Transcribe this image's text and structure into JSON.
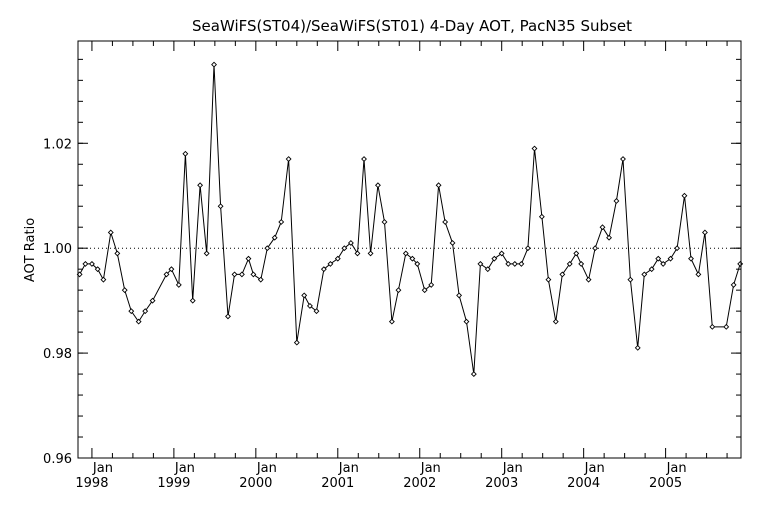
{
  "chart_data": {
    "type": "line",
    "title": "SeaWiFS(ST04)/SeaWiFS(ST01) 4-Day AOT, PacN35 Subset",
    "xlabel": "",
    "ylabel": "AOT Ratio",
    "x_unit": "decimal year",
    "xlim": [
      1997.83,
      2005.92
    ],
    "ylim": [
      0.96,
      1.0395
    ],
    "y_ticks": [
      0.96,
      0.98,
      1.0,
      1.02
    ],
    "y_tick_labels": [
      "0.96",
      "0.98",
      "1.00",
      "1.02"
    ],
    "x_ticks": [
      {
        "x": 1998,
        "month": "Jan",
        "year": "1998"
      },
      {
        "x": 1999,
        "month": "Jan",
        "year": "1999"
      },
      {
        "x": 2000,
        "month": "Jan",
        "year": "2000"
      },
      {
        "x": 2001,
        "month": "Jan",
        "year": "2001"
      },
      {
        "x": 2002,
        "month": "Jan",
        "year": "2002"
      },
      {
        "x": 2003,
        "month": "Jan",
        "year": "2003"
      },
      {
        "x": 2004,
        "month": "Jan",
        "year": "2004"
      },
      {
        "x": 2005,
        "month": "Jan",
        "year": "2005"
      }
    ],
    "reference_line": {
      "y": 1.0,
      "style": "dotted"
    },
    "grid": false,
    "series": [
      {
        "marker": "diamond",
        "points": [
          [
            1997.85,
            0.995
          ],
          [
            1997.92,
            0.997
          ],
          [
            1998.0,
            0.997
          ],
          [
            1998.07,
            0.996
          ],
          [
            1998.14,
            0.994
          ],
          [
            1998.23,
            1.003
          ],
          [
            1998.31,
            0.999
          ],
          [
            1998.4,
            0.992
          ],
          [
            1998.48,
            0.988
          ],
          [
            1998.57,
            0.986
          ],
          [
            1998.65,
            0.988
          ],
          [
            1998.74,
            0.99
          ],
          [
            1998.91,
            0.995
          ],
          [
            1998.97,
            0.996
          ],
          [
            1999.06,
            0.993
          ],
          [
            1999.14,
            1.018
          ],
          [
            1999.23,
            0.99
          ],
          [
            1999.32,
            1.012
          ],
          [
            1999.4,
            0.999
          ],
          [
            1999.49,
            1.035
          ],
          [
            1999.57,
            1.008
          ],
          [
            1999.66,
            0.987
          ],
          [
            1999.74,
            0.995
          ],
          [
            1999.83,
            0.995
          ],
          [
            1999.91,
            0.998
          ],
          [
            1999.97,
            0.995
          ],
          [
            2000.06,
            0.994
          ],
          [
            2000.14,
            1.0
          ],
          [
            2000.23,
            1.002
          ],
          [
            2000.31,
            1.005
          ],
          [
            2000.4,
            1.017
          ],
          [
            2000.5,
            0.982
          ],
          [
            2000.59,
            0.991
          ],
          [
            2000.66,
            0.989
          ],
          [
            2000.74,
            0.988
          ],
          [
            2000.83,
            0.996
          ],
          [
            2000.91,
            0.997
          ],
          [
            2001.0,
            0.998
          ],
          [
            2001.08,
            1.0
          ],
          [
            2001.16,
            1.001
          ],
          [
            2001.24,
            0.999
          ],
          [
            2001.32,
            1.017
          ],
          [
            2001.4,
            0.999
          ],
          [
            2001.49,
            1.012
          ],
          [
            2001.57,
            1.005
          ],
          [
            2001.66,
            0.986
          ],
          [
            2001.74,
            0.992
          ],
          [
            2001.83,
            0.999
          ],
          [
            2001.91,
            0.998
          ],
          [
            2001.97,
            0.997
          ],
          [
            2002.06,
            0.992
          ],
          [
            2002.14,
            0.993
          ],
          [
            2002.23,
            1.012
          ],
          [
            2002.31,
            1.005
          ],
          [
            2002.4,
            1.001
          ],
          [
            2002.48,
            0.991
          ],
          [
            2002.57,
            0.986
          ],
          [
            2002.66,
            0.976
          ],
          [
            2002.74,
            0.997
          ],
          [
            2002.83,
            0.996
          ],
          [
            2002.91,
            0.998
          ],
          [
            2003.0,
            0.999
          ],
          [
            2003.08,
            0.997
          ],
          [
            2003.16,
            0.997
          ],
          [
            2003.24,
            0.997
          ],
          [
            2003.32,
            1.0
          ],
          [
            2003.4,
            1.019
          ],
          [
            2003.49,
            1.006
          ],
          [
            2003.57,
            0.994
          ],
          [
            2003.66,
            0.986
          ],
          [
            2003.74,
            0.995
          ],
          [
            2003.83,
            0.997
          ],
          [
            2003.91,
            0.999
          ],
          [
            2003.97,
            0.997
          ],
          [
            2004.06,
            0.994
          ],
          [
            2004.14,
            1.0
          ],
          [
            2004.23,
            1.004
          ],
          [
            2004.31,
            1.002
          ],
          [
            2004.4,
            1.009
          ],
          [
            2004.48,
            1.017
          ],
          [
            2004.57,
            0.994
          ],
          [
            2004.66,
            0.981
          ],
          [
            2004.74,
            0.995
          ],
          [
            2004.83,
            0.996
          ],
          [
            2004.91,
            0.998
          ],
          [
            2004.97,
            0.997
          ],
          [
            2005.06,
            0.998
          ],
          [
            2005.14,
            1.0
          ],
          [
            2005.23,
            1.01
          ],
          [
            2005.31,
            0.998
          ],
          [
            2005.4,
            0.995
          ],
          [
            2005.48,
            1.003
          ],
          [
            2005.57,
            0.985
          ],
          [
            2005.74,
            0.985
          ],
          [
            2005.83,
            0.993
          ],
          [
            2005.91,
            0.997
          ]
        ]
      }
    ]
  }
}
